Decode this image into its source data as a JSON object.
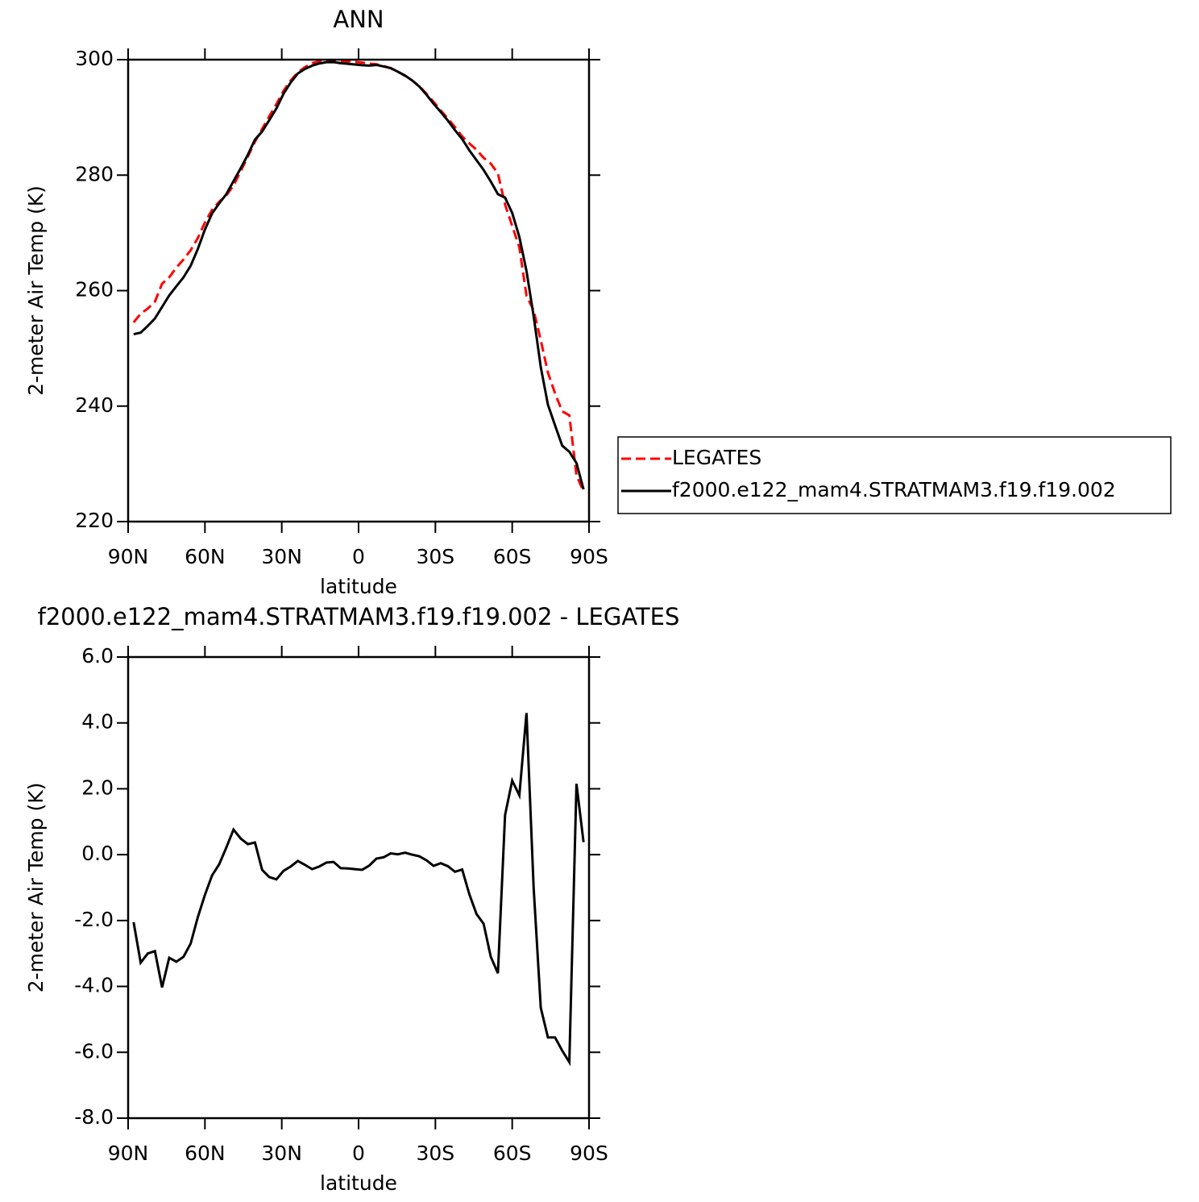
{
  "chart_data": [
    {
      "type": "line",
      "title": "ANN",
      "xlabel": "latitude",
      "ylabel": "2-meter Air Temp (K)",
      "x": [
        87.86,
        85.1,
        82.31,
        79.53,
        76.74,
        73.95,
        71.16,
        68.37,
        65.58,
        62.79,
        60.0,
        57.21,
        54.42,
        51.63,
        48.84,
        46.04,
        43.25,
        40.46,
        37.67,
        34.88,
        32.09,
        29.3,
        26.51,
        23.72,
        20.93,
        18.14,
        15.35,
        12.56,
        9.77,
        6.98,
        4.19,
        1.4,
        -1.4,
        -4.19,
        -6.98,
        -9.77,
        -12.56,
        -15.35,
        -18.14,
        -20.93,
        -23.72,
        -26.51,
        -29.3,
        -32.09,
        -34.88,
        -37.67,
        -40.46,
        -43.25,
        -46.04,
        -48.84,
        -51.63,
        -54.42,
        -57.21,
        -60.0,
        -62.79,
        -65.58,
        -68.37,
        -71.16,
        -73.95,
        -76.74,
        -79.53,
        -82.31,
        -85.1,
        -87.86
      ],
      "series": [
        {
          "name": "LEGATES",
          "color": "#ff0000",
          "line_style": "dashed",
          "values": [
            254.5,
            256.0,
            256.9,
            258.1,
            261.2,
            262.3,
            264.0,
            265.4,
            267.0,
            269.1,
            271.8,
            274.0,
            275.4,
            276.5,
            278.2,
            280.7,
            283.2,
            285.8,
            288.0,
            290.2,
            292.3,
            294.6,
            296.4,
            297.8,
            298.7,
            299.4,
            299.7,
            299.8,
            299.8,
            299.8,
            299.7,
            299.6,
            299.5,
            299.3,
            299.2,
            298.9,
            298.5,
            297.9,
            297.2,
            296.4,
            295.4,
            294.1,
            292.7,
            291.2,
            289.8,
            288.3,
            286.7,
            285.5,
            284.4,
            283.0,
            282.0,
            280.3,
            274.9,
            271.2,
            267.5,
            259.1,
            256.6,
            251.4,
            245.8,
            242.2,
            239.1,
            238.4,
            228.0,
            225.2
          ]
        },
        {
          "name": "f2000.e122_mam4.STRATMAM3.f19.f19.002",
          "color": "#000000",
          "line_style": "solid",
          "values": [
            252.45,
            252.72,
            253.9,
            255.17,
            257.17,
            259.17,
            260.75,
            262.3,
            264.3,
            267.2,
            270.58,
            273.37,
            275.11,
            276.72,
            278.96,
            281.19,
            283.52,
            286.17,
            287.54,
            289.52,
            291.55,
            294.11,
            296.04,
            297.61,
            298.39,
            298.96,
            299.34,
            299.56,
            299.58,
            299.39,
            299.28,
            299.16,
            299.04,
            298.97,
            299.08,
            298.82,
            298.54,
            297.91,
            297.26,
            296.4,
            295.35,
            293.93,
            292.36,
            290.94,
            289.45,
            287.78,
            286.25,
            284.3,
            282.6,
            280.9,
            278.9,
            276.7,
            276.1,
            273.45,
            269.3,
            263.4,
            255.6,
            246.75,
            240.25,
            236.65,
            233.15,
            232.1,
            230.15,
            225.58
          ]
        }
      ],
      "xlim": [
        90,
        -90
      ],
      "xticks": [
        {
          "value": 90,
          "label": "90N"
        },
        {
          "value": 60,
          "label": "60N"
        },
        {
          "value": 30,
          "label": "30N"
        },
        0,
        {
          "value": -30,
          "label": "30S"
        },
        {
          "value": -60,
          "label": "60S"
        },
        {
          "value": -90,
          "label": "90S"
        }
      ],
      "ylim": [
        220,
        300
      ],
      "yticks": [
        220,
        240,
        260,
        280,
        300
      ],
      "legend": "right"
    },
    {
      "type": "line",
      "title": "f2000.e122_mam4.STRATMAM3.f19.f19.002 - LEGATES",
      "xlabel": "latitude",
      "ylabel": "2-meter Air Temp (K)",
      "x": [
        87.86,
        85.1,
        82.31,
        79.53,
        76.74,
        73.95,
        71.16,
        68.37,
        65.58,
        62.79,
        60.0,
        57.21,
        54.42,
        51.63,
        48.84,
        46.04,
        43.25,
        40.46,
        37.67,
        34.88,
        32.09,
        29.3,
        26.51,
        23.72,
        20.93,
        18.14,
        15.35,
        12.56,
        9.77,
        6.98,
        4.19,
        1.4,
        -1.4,
        -4.19,
        -6.98,
        -9.77,
        -12.56,
        -15.35,
        -18.14,
        -20.93,
        -23.72,
        -26.51,
        -29.3,
        -32.09,
        -34.88,
        -37.67,
        -40.46,
        -43.25,
        -46.04,
        -48.84,
        -51.63,
        -54.42,
        -57.21,
        -60.0,
        -62.79,
        -65.58,
        -68.37,
        -71.16,
        -73.95,
        -76.74,
        -79.53,
        -82.31,
        -85.1,
        -87.86
      ],
      "values": [
        -2.05,
        -3.28,
        -3.0,
        -2.93,
        -4.03,
        -3.13,
        -3.25,
        -3.1,
        -2.7,
        -1.9,
        -1.22,
        -0.63,
        -0.29,
        0.22,
        0.76,
        0.49,
        0.32,
        0.37,
        -0.46,
        -0.68,
        -0.75,
        -0.49,
        -0.36,
        -0.19,
        -0.31,
        -0.44,
        -0.36,
        -0.24,
        -0.22,
        -0.41,
        -0.42,
        -0.44,
        -0.46,
        -0.33,
        -0.12,
        -0.08,
        0.04,
        0.01,
        0.06,
        0.0,
        -0.05,
        -0.17,
        -0.34,
        -0.26,
        -0.35,
        -0.52,
        -0.45,
        -1.2,
        -1.8,
        -2.1,
        -3.1,
        -3.6,
        1.2,
        2.25,
        1.8,
        4.3,
        -1.0,
        -4.65,
        -5.55,
        -5.55,
        -5.95,
        -6.3,
        2.15,
        0.38
      ],
      "color": "#000000",
      "xlim": [
        90,
        -90
      ],
      "xticks": [
        {
          "value": 90,
          "label": "90N"
        },
        {
          "value": 60,
          "label": "60N"
        },
        {
          "value": 30,
          "label": "30N"
        },
        0,
        {
          "value": -30,
          "label": "30S"
        },
        {
          "value": -60,
          "label": "60S"
        },
        {
          "value": -90,
          "label": "90S"
        }
      ],
      "ylim": [
        -8,
        6
      ],
      "yticks": [
        {
          "value": -8,
          "label": "-8.0"
        },
        {
          "value": -6,
          "label": "-6.0"
        },
        {
          "value": -4,
          "label": "-4.0"
        },
        {
          "value": -2,
          "label": "-2.0"
        },
        {
          "value": 0,
          "label": "0.0"
        },
        {
          "value": 2,
          "label": "2.0"
        },
        {
          "value": 4,
          "label": "4.0"
        },
        {
          "value": 6,
          "label": "6.0"
        }
      ]
    }
  ]
}
